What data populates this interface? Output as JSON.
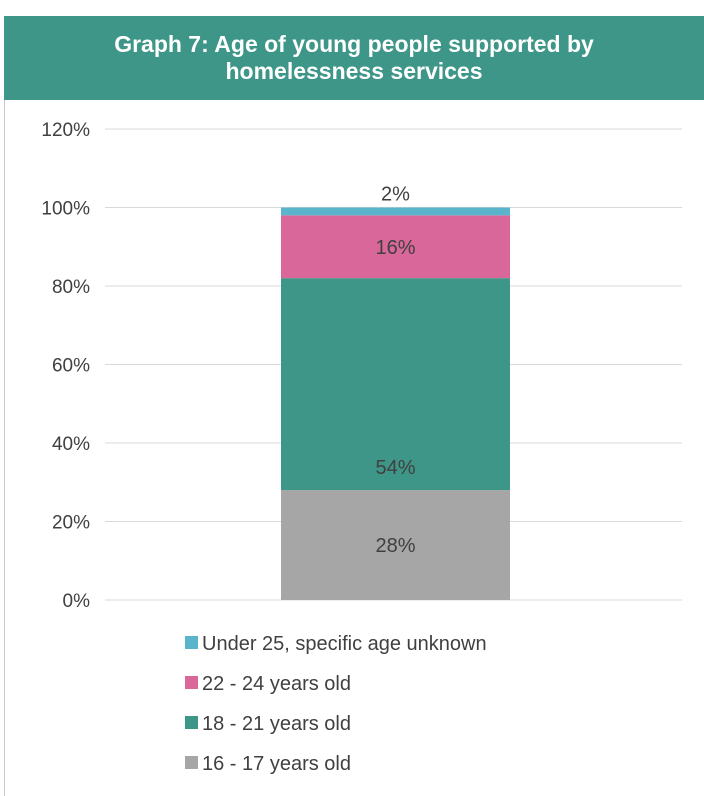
{
  "chart_data": {
    "type": "bar",
    "stacked": true,
    "title": "Graph 7: Age of young people supported by homelessness services",
    "xlabel": "",
    "ylabel": "",
    "ylim": [
      0,
      120
    ],
    "yticks": [
      "0%",
      "20%",
      "40%",
      "60%",
      "80%",
      "100%",
      "120%"
    ],
    "grid": true,
    "legend_position": "bottom",
    "series": [
      {
        "name": "16 - 17 years old",
        "value": 28,
        "label": "28%",
        "color": "#a6a6a6"
      },
      {
        "name": "18 - 21 years old",
        "value": 54,
        "label": "54%",
        "color": "#3e9688"
      },
      {
        "name": "22 - 24 years old",
        "value": 16,
        "label": "16%",
        "color": "#d9679a"
      },
      {
        "name": "Under 25, specific age unknown",
        "value": 2,
        "label": "2%",
        "color": "#5ab4cc"
      }
    ],
    "legend_order": [
      "Under 25, specific age unknown",
      "22 - 24 years old",
      "18 - 21 years old",
      "16 - 17 years old"
    ]
  },
  "colors": {
    "header_bg": "#3e9688",
    "header_text": "#ffffff",
    "grid": "#d9d9d9",
    "text": "#404040"
  }
}
